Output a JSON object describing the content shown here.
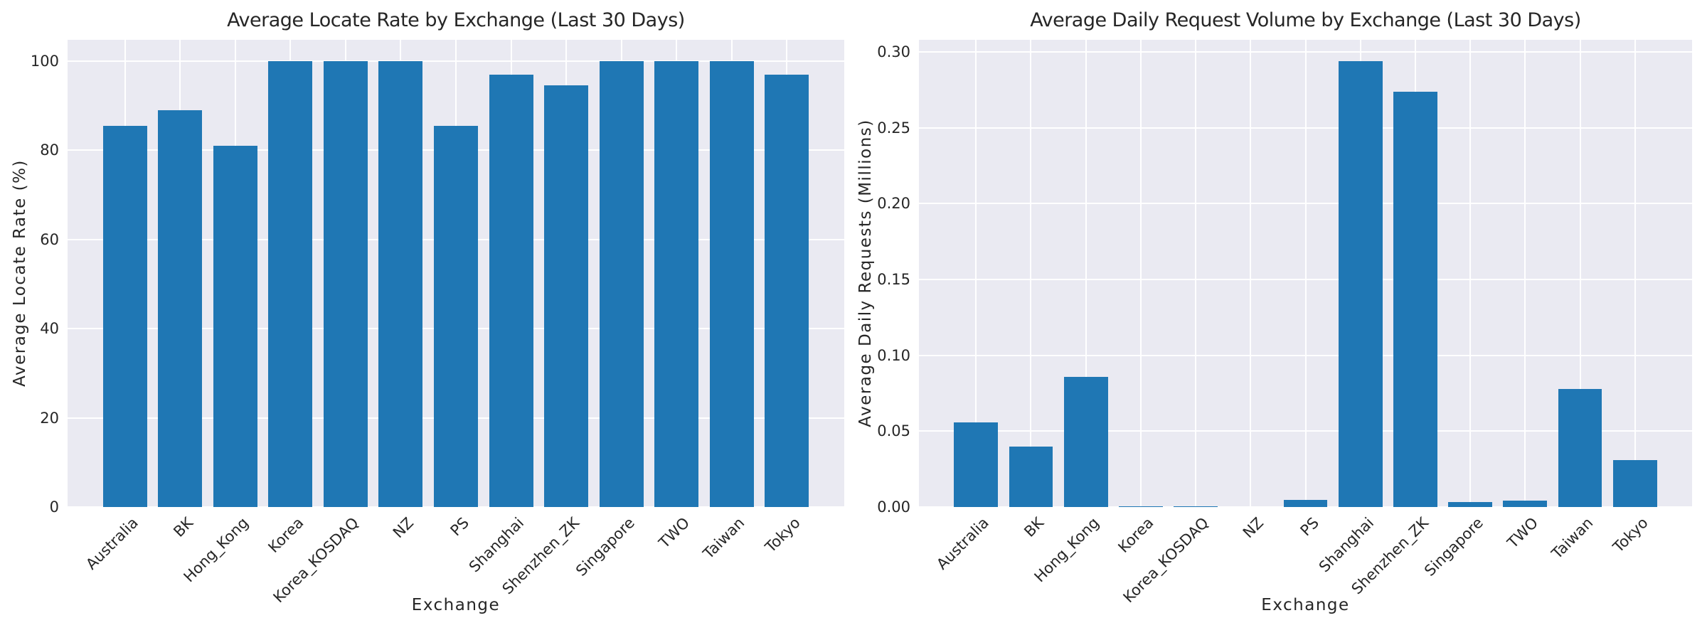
{
  "figure": {
    "background_color": "#ffffff",
    "axes_background_color": "#eaeaf2",
    "grid_color": "#ffffff",
    "text_color": "#262626"
  },
  "chart_data": [
    {
      "type": "bar",
      "title": "Average Locate Rate by Exchange (Last 30 Days)",
      "xlabel": "Exchange",
      "ylabel": "Average Locate Rate (%)",
      "bar_color": "#1f77b4",
      "grid": true,
      "legend": null,
      "xtick_rotation_deg": 45,
      "categories": [
        "Australia",
        "BK",
        "Hong_Kong",
        "Korea",
        "Korea_KOSDAQ",
        "NZ",
        "PS",
        "Shanghai",
        "Shenzhen_ZK",
        "Singapore",
        "TWO",
        "Taiwan",
        "Tokyo"
      ],
      "values": [
        85.5,
        89,
        81,
        100,
        100,
        100,
        85.5,
        97,
        94.6,
        100,
        100,
        100,
        97
      ],
      "ylim": [
        0,
        104.74
      ],
      "ytick_values": [
        0,
        20,
        40,
        60,
        80,
        100
      ],
      "ytick_labels": [
        "0",
        "20",
        "40",
        "60",
        "80",
        "100"
      ]
    },
    {
      "type": "bar",
      "title": "Average Daily Request Volume by Exchange (Last 30 Days)",
      "xlabel": "Exchange",
      "ylabel": "Average Daily Requests (Millions)",
      "bar_color": "#1f77b4",
      "grid": true,
      "legend": null,
      "xtick_rotation_deg": 45,
      "categories": [
        "Australia",
        "BK",
        "Hong_Kong",
        "Korea",
        "Korea_KOSDAQ",
        "NZ",
        "PS",
        "Shanghai",
        "Shenzhen_ZK",
        "Singapore",
        "TWO",
        "Taiwan",
        "Tokyo"
      ],
      "values": [
        0.056,
        0.04,
        0.086,
        0.0007,
        0.0005,
        0.0002,
        0.0045,
        0.294,
        0.274,
        0.0033,
        0.0042,
        0.078,
        0.031
      ],
      "ylim": [
        0,
        0.308
      ],
      "ytick_values": [
        0.0,
        0.05,
        0.1,
        0.15,
        0.2,
        0.25,
        0.3
      ],
      "ytick_labels": [
        "0.00",
        "0.05",
        "0.10",
        "0.15",
        "0.20",
        "0.25",
        "0.30"
      ]
    }
  ]
}
